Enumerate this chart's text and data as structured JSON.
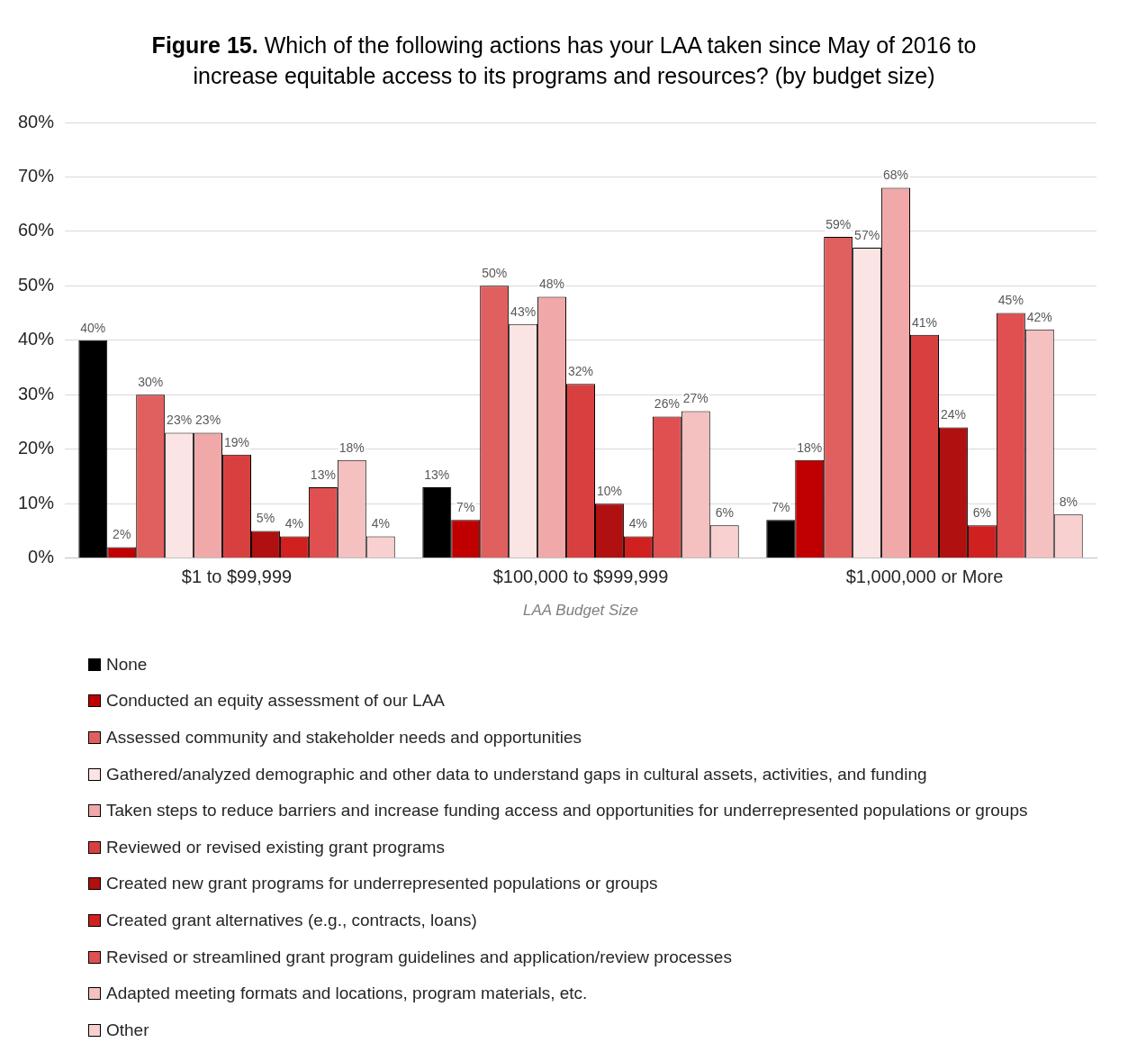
{
  "chart_data": {
    "type": "bar",
    "title": "Figure 15. Which of the following actions has your LAA taken since May of 2016 to increase equitable access to its programs and resources? (by budget size)",
    "xlabel": "LAA Budget Size",
    "categories": [
      "$1 to $99,999",
      "$100,000 to $999,999",
      "$1,000,000 or More"
    ],
    "series": [
      {
        "name": "None",
        "color": "#000000",
        "values": [
          40,
          13,
          7
        ],
        "value_labels": [
          "40%",
          "13%",
          "7%"
        ]
      },
      {
        "name": "Conducted an equity assessment of our LAA",
        "color": "#c00000",
        "values": [
          2,
          7,
          18
        ],
        "value_labels": [
          "2%",
          "7%",
          "18%"
        ]
      },
      {
        "name": "Assessed community and stakeholder needs and opportunities",
        "color": "#e06060",
        "values": [
          30,
          50,
          59
        ],
        "value_labels": [
          "30%",
          "50%",
          "59%"
        ]
      },
      {
        "name": "Gathered/analyzed demographic and other data to understand gaps in cultural assets, activities, and funding",
        "color": "#fbe4e4",
        "values": [
          23,
          43,
          57
        ],
        "value_labels": [
          "23%",
          "43%",
          "57%"
        ]
      },
      {
        "name": "Taken steps to reduce barriers and increase funding access and opportunities for underrepresented populations or groups",
        "color": "#f0a8a8",
        "values": [
          23,
          48,
          68
        ],
        "value_labels": [
          "23%",
          "48%",
          "68%"
        ]
      },
      {
        "name": "Reviewed or revised existing grant programs",
        "color": "#d84040",
        "values": [
          19,
          32,
          41
        ],
        "value_labels": [
          "19%",
          "32%",
          "41%"
        ]
      },
      {
        "name": "Created new grant programs for underrepresented populations or groups",
        "color": "#b01010",
        "values": [
          5,
          10,
          24
        ],
        "value_labels": [
          "5%",
          "10%",
          "24%"
        ]
      },
      {
        "name": "Created grant alternatives (e.g., contracts, loans)",
        "color": "#d02020",
        "values": [
          4,
          4,
          6
        ],
        "value_labels": [
          "4%",
          "4%",
          "6%"
        ]
      },
      {
        "name": "Revised or streamlined grant program guidelines and application/review processes",
        "color": "#e05050",
        "values": [
          13,
          26,
          45
        ],
        "value_labels": [
          "13%",
          "26%",
          "45%"
        ]
      },
      {
        "name": "Adapted meeting formats and locations, program materials, etc.",
        "color": "#f4c0c0",
        "values": [
          18,
          27,
          42
        ],
        "value_labels": [
          "18%",
          "27%",
          "42%"
        ]
      },
      {
        "name": "Other",
        "color": "#f8d0d0",
        "values": [
          4,
          6,
          8
        ],
        "value_labels": [
          "4%",
          "6%",
          "8%"
        ]
      }
    ],
    "ylim": [
      0,
      80
    ],
    "yticks": [
      {
        "value": 0,
        "label": "0%"
      },
      {
        "value": 10,
        "label": "10%"
      },
      {
        "value": 20,
        "label": "20%"
      },
      {
        "value": 30,
        "label": "30%"
      },
      {
        "value": 40,
        "label": "40%"
      },
      {
        "value": 50,
        "label": "50%"
      },
      {
        "value": 60,
        "label": "60%"
      },
      {
        "value": 70,
        "label": "70%"
      },
      {
        "value": 80,
        "label": "80%"
      }
    ],
    "grid": "y",
    "legend": "bottom"
  }
}
